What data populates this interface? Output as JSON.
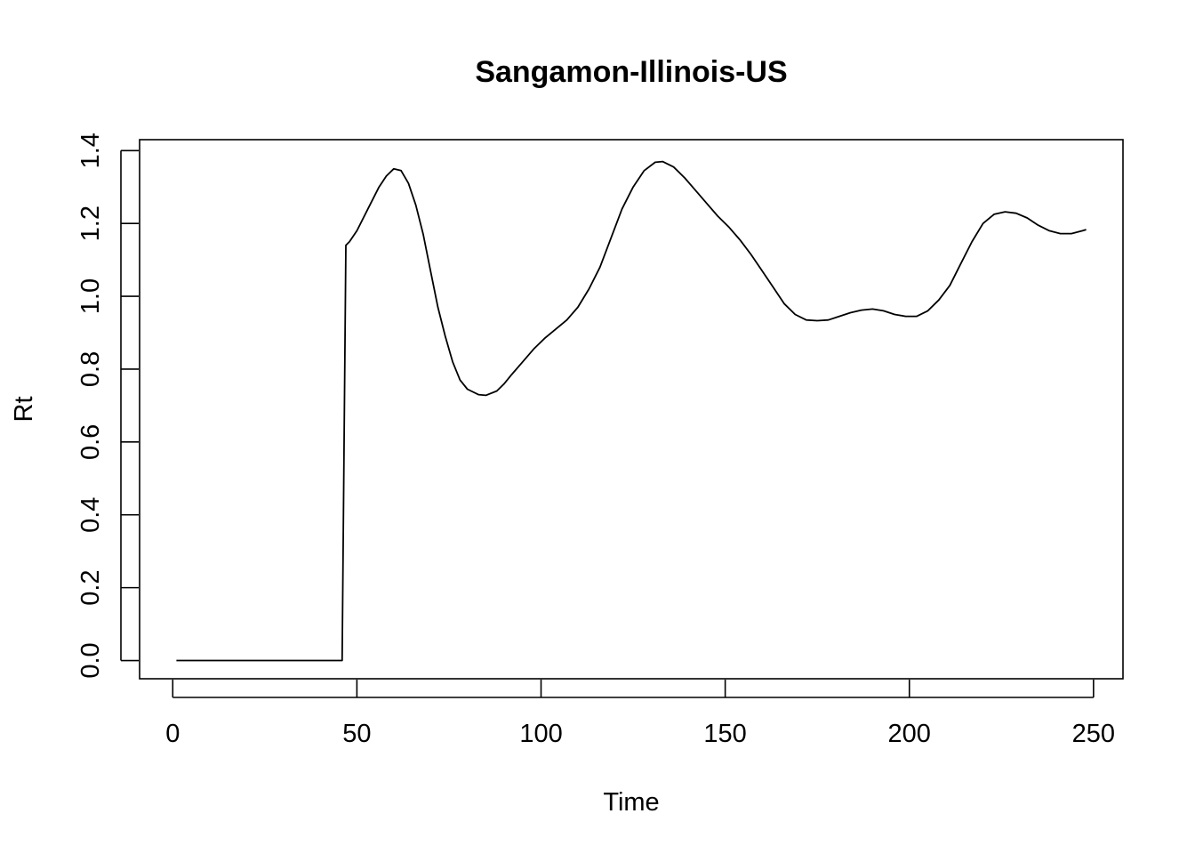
{
  "chart_data": {
    "type": "line",
    "title": "Sangamon-Illinois-US",
    "xlabel": "Time",
    "ylabel": "Rt",
    "xlim": [
      -9,
      258
    ],
    "ylim": [
      -0.05,
      1.43
    ],
    "x_ticks": [
      0,
      50,
      100,
      150,
      200,
      250
    ],
    "y_ticks": [
      0.0,
      0.2,
      0.4,
      0.6,
      0.8,
      1.0,
      1.2,
      1.4
    ],
    "x_tick_labels": [
      "0",
      "50",
      "100",
      "150",
      "200",
      "250"
    ],
    "y_tick_labels": [
      "0.0",
      "0.2",
      "0.4",
      "0.6",
      "0.8",
      "1.0",
      "1.2",
      "1.4"
    ],
    "grid": false,
    "legend": "none",
    "series": [
      {
        "color": "#000000",
        "points": [
          [
            1,
            0.0
          ],
          [
            20,
            0.0
          ],
          [
            40,
            0.0
          ],
          [
            46,
            0.0
          ],
          [
            47,
            1.14
          ],
          [
            48,
            1.15
          ],
          [
            50,
            1.18
          ],
          [
            53,
            1.24
          ],
          [
            56,
            1.3
          ],
          [
            58,
            1.33
          ],
          [
            60,
            1.35
          ],
          [
            62,
            1.345
          ],
          [
            64,
            1.31
          ],
          [
            66,
            1.25
          ],
          [
            68,
            1.17
          ],
          [
            70,
            1.07
          ],
          [
            72,
            0.97
          ],
          [
            74,
            0.89
          ],
          [
            76,
            0.82
          ],
          [
            78,
            0.77
          ],
          [
            80,
            0.745
          ],
          [
            83,
            0.73
          ],
          [
            85,
            0.728
          ],
          [
            88,
            0.74
          ],
          [
            90,
            0.76
          ],
          [
            92,
            0.785
          ],
          [
            95,
            0.82
          ],
          [
            98,
            0.855
          ],
          [
            101,
            0.885
          ],
          [
            104,
            0.91
          ],
          [
            107,
            0.935
          ],
          [
            110,
            0.97
          ],
          [
            113,
            1.02
          ],
          [
            116,
            1.08
          ],
          [
            119,
            1.16
          ],
          [
            122,
            1.24
          ],
          [
            125,
            1.3
          ],
          [
            128,
            1.345
          ],
          [
            131,
            1.368
          ],
          [
            133,
            1.37
          ],
          [
            136,
            1.355
          ],
          [
            139,
            1.325
          ],
          [
            142,
            1.29
          ],
          [
            145,
            1.255
          ],
          [
            148,
            1.22
          ],
          [
            151,
            1.19
          ],
          [
            154,
            1.155
          ],
          [
            157,
            1.115
          ],
          [
            160,
            1.07
          ],
          [
            163,
            1.025
          ],
          [
            166,
            0.98
          ],
          [
            169,
            0.95
          ],
          [
            172,
            0.935
          ],
          [
            175,
            0.933
          ],
          [
            178,
            0.935
          ],
          [
            181,
            0.945
          ],
          [
            184,
            0.955
          ],
          [
            187,
            0.962
          ],
          [
            190,
            0.965
          ],
          [
            193,
            0.96
          ],
          [
            196,
            0.95
          ],
          [
            199,
            0.945
          ],
          [
            202,
            0.945
          ],
          [
            205,
            0.96
          ],
          [
            208,
            0.99
          ],
          [
            211,
            1.03
          ],
          [
            214,
            1.09
          ],
          [
            217,
            1.15
          ],
          [
            220,
            1.2
          ],
          [
            223,
            1.225
          ],
          [
            226,
            1.232
          ],
          [
            229,
            1.228
          ],
          [
            232,
            1.215
          ],
          [
            235,
            1.195
          ],
          [
            238,
            1.18
          ],
          [
            241,
            1.172
          ],
          [
            244,
            1.172
          ],
          [
            247,
            1.18
          ],
          [
            248,
            1.183
          ]
        ]
      }
    ]
  }
}
